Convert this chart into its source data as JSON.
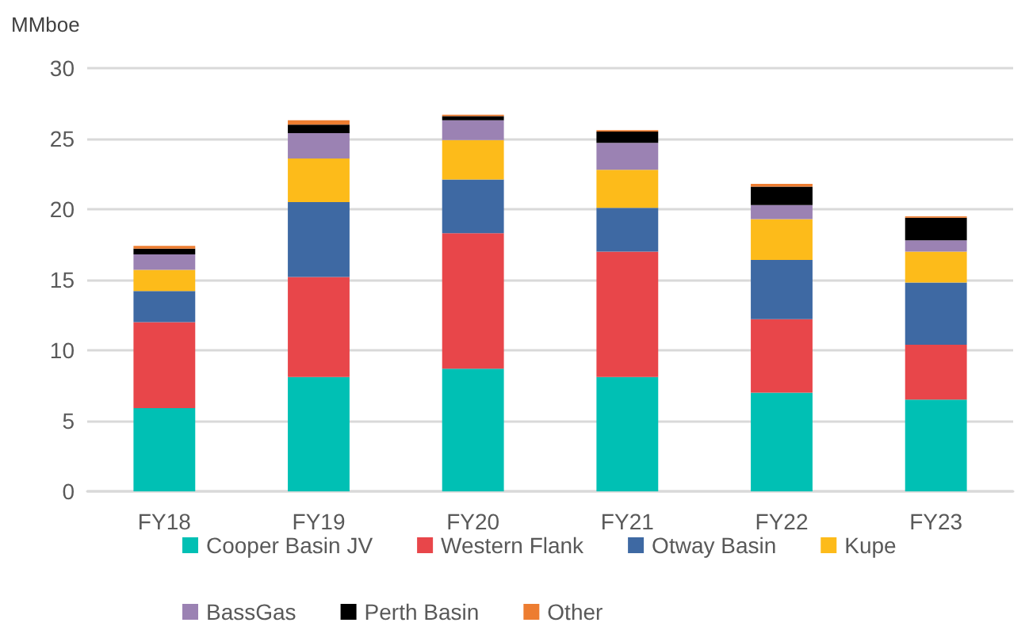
{
  "chart_data": {
    "type": "bar",
    "stacked": true,
    "ylabel": "MMboe",
    "categories": [
      "FY18",
      "FY19",
      "FY20",
      "FY21",
      "FY22",
      "FY23"
    ],
    "series": [
      {
        "name": "Cooper Basin JV",
        "color": "#00c0b4",
        "values": [
          5.9,
          8.1,
          8.7,
          8.1,
          7.0,
          6.5
        ]
      },
      {
        "name": "Western Flank",
        "color": "#e8464a",
        "values": [
          6.1,
          7.1,
          9.6,
          8.9,
          5.2,
          3.9
        ]
      },
      {
        "name": "Otway Basin",
        "color": "#3e69a3",
        "values": [
          2.2,
          5.3,
          3.8,
          3.1,
          4.2,
          4.4
        ]
      },
      {
        "name": "Kupe",
        "color": "#fdbb1a",
        "values": [
          1.5,
          3.1,
          2.8,
          2.7,
          2.9,
          2.2
        ]
      },
      {
        "name": "BassGas",
        "color": "#9b82b3",
        "values": [
          1.1,
          1.8,
          1.4,
          1.9,
          1.0,
          0.8
        ]
      },
      {
        "name": "Perth Basin",
        "color": "#000000",
        "values": [
          0.4,
          0.6,
          0.3,
          0.8,
          1.3,
          1.6
        ]
      },
      {
        "name": "Other",
        "color": "#ed7d31",
        "values": [
          0.2,
          0.3,
          0.1,
          0.1,
          0.2,
          0.1
        ]
      }
    ],
    "ylim": [
      0,
      30
    ],
    "yticks": [
      0,
      5,
      10,
      15,
      20,
      25,
      30
    ],
    "grid": "y",
    "legend": "bottom"
  }
}
